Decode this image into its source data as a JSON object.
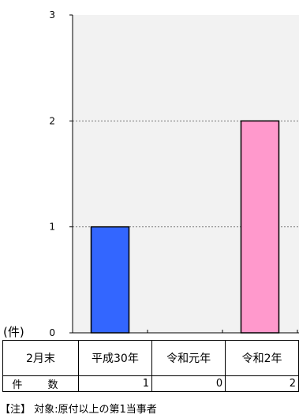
{
  "unit_label": "(件)",
  "table": {
    "header_label": "2月末",
    "count_label": "件 数"
  },
  "note": "【注】 対象:原付以上の第1当事者",
  "chart_data": {
    "type": "bar",
    "categories": [
      "平成30年",
      "令和元年",
      "令和2年"
    ],
    "values": [
      1,
      0,
      2
    ],
    "colors": [
      "#3366ff",
      "#3366ff",
      "#ff99cc"
    ],
    "ylim": [
      0,
      3
    ],
    "yticks": [
      0,
      1,
      2,
      3
    ],
    "grid": true,
    "title": "",
    "xlabel": "",
    "ylabel": ""
  }
}
